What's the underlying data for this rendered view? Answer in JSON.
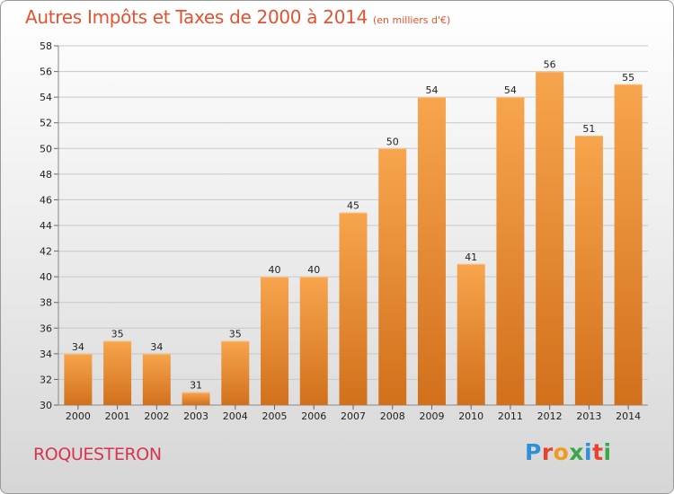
{
  "header": {
    "title": "Autres Impôts et Taxes de 2000 à 2014",
    "subtitle": "(en milliers d'€)"
  },
  "footer": {
    "commune": "ROQUESTERON",
    "logo": "Proxiti"
  },
  "colors": {
    "bar_top": "#f7a54e",
    "bar_bottom": "#d2701c",
    "title": "#e4522f",
    "commune": "#d7354f"
  },
  "chart_data": {
    "type": "bar",
    "categories": [
      "2000",
      "2001",
      "2002",
      "2003",
      "2004",
      "2005",
      "2006",
      "2007",
      "2008",
      "2009",
      "2010",
      "2011",
      "2012",
      "2013",
      "2014"
    ],
    "values": [
      34,
      35,
      34,
      31,
      35,
      40,
      40,
      45,
      50,
      54,
      41,
      54,
      56,
      51,
      55
    ],
    "title": "Autres Impôts et Taxes de 2000 à 2014",
    "subtitle": "(en milliers d'€)",
    "ylim": [
      30,
      58
    ],
    "yticks": [
      30,
      32,
      34,
      36,
      38,
      40,
      42,
      44,
      46,
      48,
      50,
      52,
      54,
      56,
      58
    ],
    "grid": true,
    "data_labels": true
  }
}
